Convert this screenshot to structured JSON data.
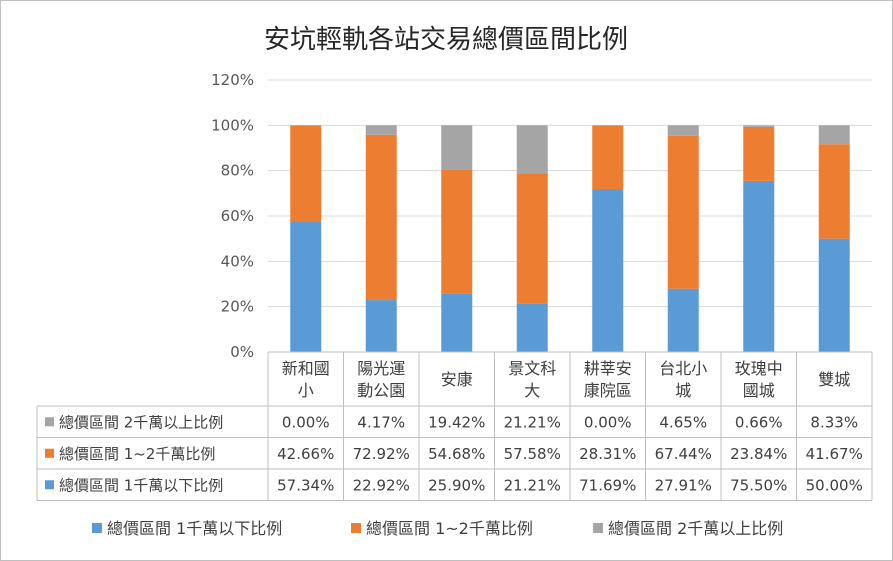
{
  "chart_data": {
    "type": "bar",
    "stacked": true,
    "title": "安坑輕軌各站交易總價區間比例",
    "categories": [
      [
        "新和國",
        "小"
      ],
      [
        "陽光運",
        "動公園"
      ],
      [
        "安康"
      ],
      [
        "景文科",
        "大"
      ],
      [
        "耕莘安",
        "康院區"
      ],
      [
        "台北小",
        "城"
      ],
      [
        "玫瑰中",
        "國城"
      ],
      [
        "雙城"
      ]
    ],
    "ylim": [
      0,
      1.2
    ],
    "yticks": [
      "0%",
      "20%",
      "40%",
      "60%",
      "80%",
      "100%",
      "120%"
    ],
    "grid": true,
    "legend_position": "bottom",
    "data_table": true,
    "series": [
      {
        "name": "總價區間 1千萬以下比例",
        "color": "#5b9bd5",
        "values": [
          0.5734,
          0.2292,
          0.259,
          0.2121,
          0.7169,
          0.2791,
          0.755,
          0.5
        ],
        "labels": [
          "57.34%",
          "22.92%",
          "25.90%",
          "21.21%",
          "71.69%",
          "27.91%",
          "75.50%",
          "50.00%"
        ]
      },
      {
        "name": "總價區間 1~2千萬比例",
        "color": "#ed7d31",
        "values": [
          0.4266,
          0.7292,
          0.5468,
          0.5758,
          0.2831,
          0.6744,
          0.2384,
          0.4167
        ],
        "labels": [
          "42.66%",
          "72.92%",
          "54.68%",
          "57.58%",
          "28.31%",
          "67.44%",
          "23.84%",
          "41.67%"
        ]
      },
      {
        "name": "總價區間 2千萬以上比例",
        "color": "#a5a5a5",
        "values": [
          0.0,
          0.0417,
          0.1942,
          0.2121,
          0.0,
          0.0465,
          0.0066,
          0.0833
        ],
        "labels": [
          "0.00%",
          "4.17%",
          "19.42%",
          "21.21%",
          "0.00%",
          "4.65%",
          "0.66%",
          "8.33%"
        ]
      }
    ]
  }
}
